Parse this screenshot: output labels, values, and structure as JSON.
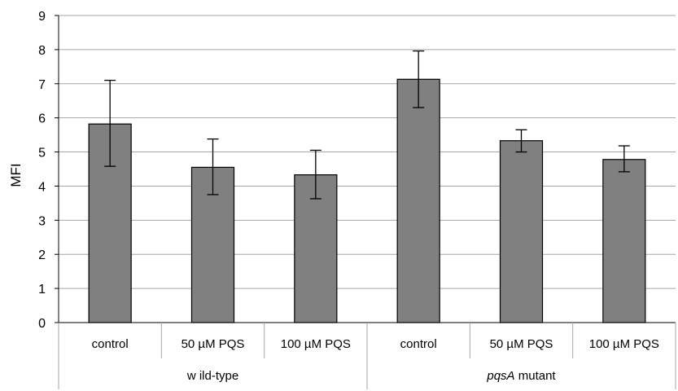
{
  "chart_data": {
    "type": "bar",
    "title": "",
    "xlabel": "",
    "ylabel": "MFI",
    "ylim": [
      0,
      9
    ],
    "yticks": [
      0,
      1,
      2,
      3,
      4,
      5,
      6,
      7,
      8,
      9
    ],
    "grid": true,
    "legend": "none",
    "categories": [
      "control",
      "50 µM PQS",
      "100 µM PQS",
      "control",
      "50 µM PQS",
      "100 µM PQS"
    ],
    "groups": [
      {
        "label": "w ild-type",
        "label_italic": "",
        "label_rest": "w ild-type",
        "categories": [
          0,
          1,
          2
        ]
      },
      {
        "label": "pqsA mutant",
        "label_italic": "pqsA",
        "label_rest": " mutant",
        "categories": [
          3,
          4,
          5
        ]
      }
    ],
    "values": [
      5.82,
      4.55,
      4.33,
      7.13,
      5.33,
      4.78
    ],
    "error_low": [
      4.58,
      3.75,
      3.63,
      6.3,
      5.0,
      4.42
    ],
    "error_high": [
      7.1,
      5.38,
      5.05,
      7.96,
      5.65,
      5.18
    ],
    "colors": {
      "bar": "#808080",
      "bar_stroke": "#000000",
      "grid": "#a6a6a6",
      "axis": "#000000"
    }
  }
}
